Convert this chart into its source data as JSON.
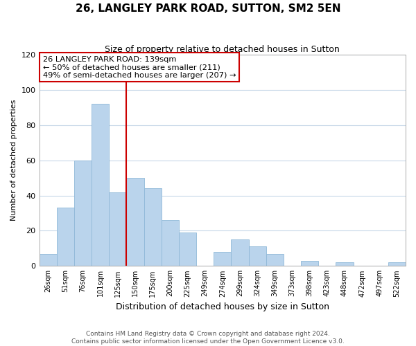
{
  "title": "26, LANGLEY PARK ROAD, SUTTON, SM2 5EN",
  "subtitle": "Size of property relative to detached houses in Sutton",
  "xlabel": "Distribution of detached houses by size in Sutton",
  "ylabel": "Number of detached properties",
  "bar_labels": [
    "26sqm",
    "51sqm",
    "76sqm",
    "101sqm",
    "125sqm",
    "150sqm",
    "175sqm",
    "200sqm",
    "225sqm",
    "249sqm",
    "274sqm",
    "299sqm",
    "324sqm",
    "349sqm",
    "373sqm",
    "398sqm",
    "423sqm",
    "448sqm",
    "472sqm",
    "497sqm",
    "522sqm"
  ],
  "bar_values": [
    7,
    33,
    60,
    92,
    42,
    50,
    44,
    26,
    19,
    0,
    8,
    15,
    11,
    7,
    0,
    3,
    0,
    2,
    0,
    0,
    2
  ],
  "bar_color": "#bad4ec",
  "bar_edge_color": "#8fb8d8",
  "vline_x": 4.5,
  "vline_color": "#cc0000",
  "ylim": [
    0,
    120
  ],
  "yticks": [
    0,
    20,
    40,
    60,
    80,
    100,
    120
  ],
  "annotation_line1": "26 LANGLEY PARK ROAD: 139sqm",
  "annotation_line2": "← 50% of detached houses are smaller (211)",
  "annotation_line3": "49% of semi-detached houses are larger (207) →",
  "annotation_box_color": "#ffffff",
  "annotation_box_edge": "#cc0000",
  "footer_line1": "Contains HM Land Registry data © Crown copyright and database right 2024.",
  "footer_line2": "Contains public sector information licensed under the Open Government Licence v3.0.",
  "background_color": "#ffffff",
  "grid_color": "#c8d8e8"
}
